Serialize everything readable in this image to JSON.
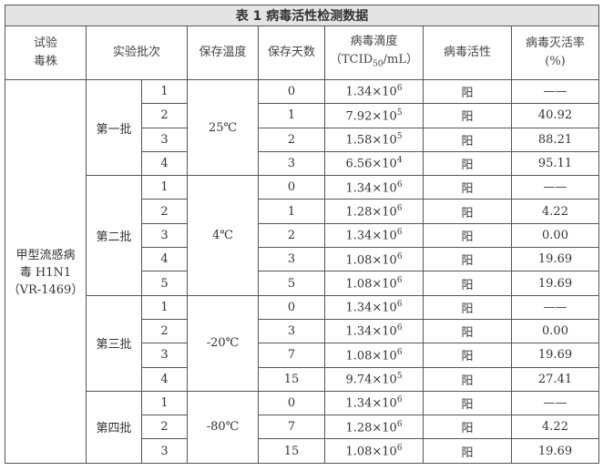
{
  "title": "表 1  病毒活性检测数据",
  "headers": {
    "strain": [
      "试验",
      "毒株"
    ],
    "batch": "实验批次",
    "temp": "保存温度",
    "days": "保存天数",
    "titer": [
      "病毒滴度",
      "（TCID",
      "50",
      "/mL）"
    ],
    "activity": "病毒活性",
    "rate": [
      "病毒灭活率",
      "(%)"
    ]
  },
  "strain": [
    "甲型流感病",
    "毒 H1N1",
    "（VR-1469）"
  ],
  "batches": [
    {
      "name": "第一批",
      "temp": "25℃",
      "rows": [
        {
          "n": "1",
          "days": "0",
          "mant": "1.34×10",
          "exp": "6",
          "act": "阳",
          "rate": "——"
        },
        {
          "n": "2",
          "days": "1",
          "mant": "7.92×10",
          "exp": "5",
          "act": "阳",
          "rate": "40.92"
        },
        {
          "n": "3",
          "days": "2",
          "mant": "1.58×10",
          "exp": "5",
          "act": "阳",
          "rate": "88.21"
        },
        {
          "n": "4",
          "days": "3",
          "mant": "6.56×10",
          "exp": "4",
          "act": "阳",
          "rate": "95.11"
        }
      ]
    },
    {
      "name": "第二批",
      "temp": "4℃",
      "rows": [
        {
          "n": "1",
          "days": "0",
          "mant": "1.34×10",
          "exp": "6",
          "act": "阳",
          "rate": "——"
        },
        {
          "n": "2",
          "days": "1",
          "mant": "1.28×10",
          "exp": "6",
          "act": "阳",
          "rate": "4.22"
        },
        {
          "n": "3",
          "days": "2",
          "mant": "1.34×10",
          "exp": "6",
          "act": "阳",
          "rate": "0.00"
        },
        {
          "n": "4",
          "days": "3",
          "mant": "1.08×10",
          "exp": "6",
          "act": "阳",
          "rate": "19.69"
        },
        {
          "n": "5",
          "days": "5",
          "mant": "1.08×10",
          "exp": "6",
          "act": "阳",
          "rate": "19.69"
        }
      ]
    },
    {
      "name": "第三批",
      "temp": "-20℃",
      "rows": [
        {
          "n": "1",
          "days": "0",
          "mant": "1.34×10",
          "exp": "6",
          "act": "阳",
          "rate": "——"
        },
        {
          "n": "2",
          "days": "3",
          "mant": "1.34×10",
          "exp": "6",
          "act": "阳",
          "rate": "0.00"
        },
        {
          "n": "3",
          "days": "7",
          "mant": "1.08×10",
          "exp": "6",
          "act": "阳",
          "rate": "19.69"
        },
        {
          "n": "4",
          "days": "15",
          "mant": "9.74×10",
          "exp": "5",
          "act": "阳",
          "rate": "27.41"
        }
      ]
    },
    {
      "name": "第四批",
      "temp": "-80℃",
      "rows": [
        {
          "n": "1",
          "days": "0",
          "mant": "1.34×10",
          "exp": "6",
          "act": "阳",
          "rate": "——"
        },
        {
          "n": "2",
          "days": "7",
          "mant": "1.28×10",
          "exp": "6",
          "act": "阳",
          "rate": "4.22"
        },
        {
          "n": "3",
          "days": "15",
          "mant": "1.08×10",
          "exp": "6",
          "act": "阳",
          "rate": "19.69"
        }
      ]
    }
  ]
}
